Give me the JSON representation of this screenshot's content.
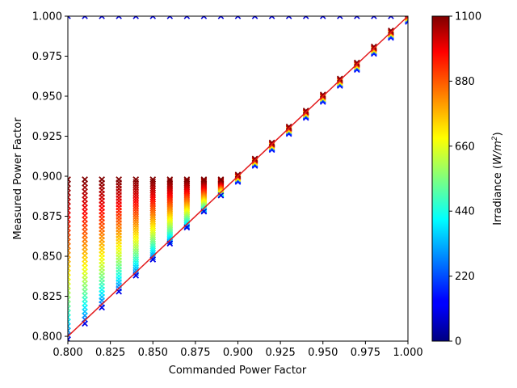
{
  "chart_data": {
    "type": "scatter",
    "title": "",
    "xlabel": "Commanded Power Factor",
    "ylabel": "Measured Power Factor",
    "xlim": [
      0.8,
      1.0
    ],
    "ylim": [
      0.797,
      1.0
    ],
    "x_ticks": [
      "0.800",
      "0.825",
      "0.850",
      "0.875",
      "0.900",
      "0.925",
      "0.950",
      "0.975",
      "1.000"
    ],
    "y_ticks": [
      "0.800",
      "0.825",
      "0.850",
      "0.875",
      "0.900",
      "0.925",
      "0.950",
      "0.975",
      "1.000"
    ],
    "grid": false,
    "marker": "x",
    "commanded_power_factors": [
      0.8,
      0.81,
      0.82,
      0.83,
      0.84,
      0.85,
      0.86,
      0.87,
      0.88,
      0.89,
      0.9,
      0.91,
      0.92,
      0.93,
      0.94,
      0.95,
      0.96,
      0.97,
      0.98,
      0.99,
      1.0
    ],
    "measured_at_low_irradiance_top": 1.0,
    "measured_limit": 0.898,
    "irradiance_range": [
      0,
      1100
    ],
    "reference_line": {
      "x": [
        0.8,
        1.0
      ],
      "y": [
        0.8,
        1.0
      ],
      "color": "#e31a1c"
    },
    "colorbar": {
      "label": "Irradiance (W/m²)",
      "label_prefix": "Irradiance (",
      "label_unit": "W/m",
      "label_sup": "2",
      "label_suffix": ")",
      "ticks": [
        "0",
        "220",
        "440",
        "660",
        "880",
        "1100"
      ],
      "colormap": "jet"
    }
  }
}
